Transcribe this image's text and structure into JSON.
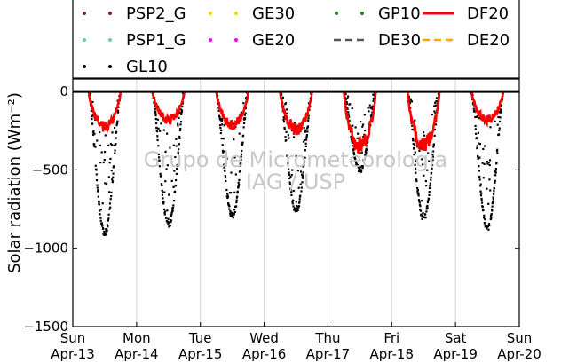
{
  "chart_data": {
    "type": "line",
    "title": "",
    "xlabel": "",
    "ylabel": "Solar radiation (Wm⁻²)",
    "ylim": [
      -1500,
      80
    ],
    "xlim": [
      0,
      7
    ],
    "yticks": [
      0,
      -500,
      -1000,
      -1500
    ],
    "ytick_labels": [
      "0",
      "−500",
      "−1000",
      "−1500"
    ],
    "xticks": [
      0,
      1,
      2,
      3,
      4,
      5,
      6,
      7
    ],
    "xtick_labels": [
      [
        "Sun",
        "Apr-13"
      ],
      [
        "Mon",
        "Apr-14"
      ],
      [
        "Tue",
        "Apr-15"
      ],
      [
        "Wed",
        "Apr-16"
      ],
      [
        "Thu",
        "Apr-17"
      ],
      [
        "Fri",
        "Apr-18"
      ],
      [
        "Sat",
        "Apr-19"
      ],
      [
        "Sun",
        "Apr-20"
      ]
    ],
    "grid": "vertical",
    "legend": {
      "placement": "top",
      "entries": [
        {
          "name": "PSP2_G",
          "color": "#8b2020",
          "style": "dots"
        },
        {
          "name": "GE30",
          "color": "#ffd700",
          "style": "dots"
        },
        {
          "name": "GP10",
          "color": "#228b22",
          "style": "dots"
        },
        {
          "name": "DF20",
          "color": "#ff0000",
          "style": "line"
        },
        {
          "name": "PSP1_G",
          "color": "#66cdaa",
          "style": "dots"
        },
        {
          "name": "GE20",
          "color": "#ff00ff",
          "style": "dots"
        },
        {
          "name": "DE30",
          "color": "#555555",
          "style": "dashed"
        },
        {
          "name": "DE20",
          "color": "#ffa500",
          "style": "dashed"
        },
        {
          "name": "GL10",
          "color": "#000000",
          "style": "dots"
        }
      ]
    },
    "series": [
      {
        "name": "GL10",
        "color": "#000000",
        "daily_min": [
          -900,
          -850,
          -790,
          -760,
          -500,
          -810,
          -870
        ]
      },
      {
        "name": "DF20",
        "color": "#ff0000",
        "daily_min": [
          -250,
          -200,
          -240,
          -270,
          -390,
          -380,
          -200
        ]
      }
    ],
    "day_window": {
      "start": 0.25,
      "end": 0.75
    }
  },
  "watermark": {
    "line1": "Grupo de Micrometeorologia",
    "line2": "IAG / USP"
  },
  "colors": {
    "axis": "#000000",
    "grid": "#d3d3d3",
    "watermark": "#c8c8c8"
  }
}
